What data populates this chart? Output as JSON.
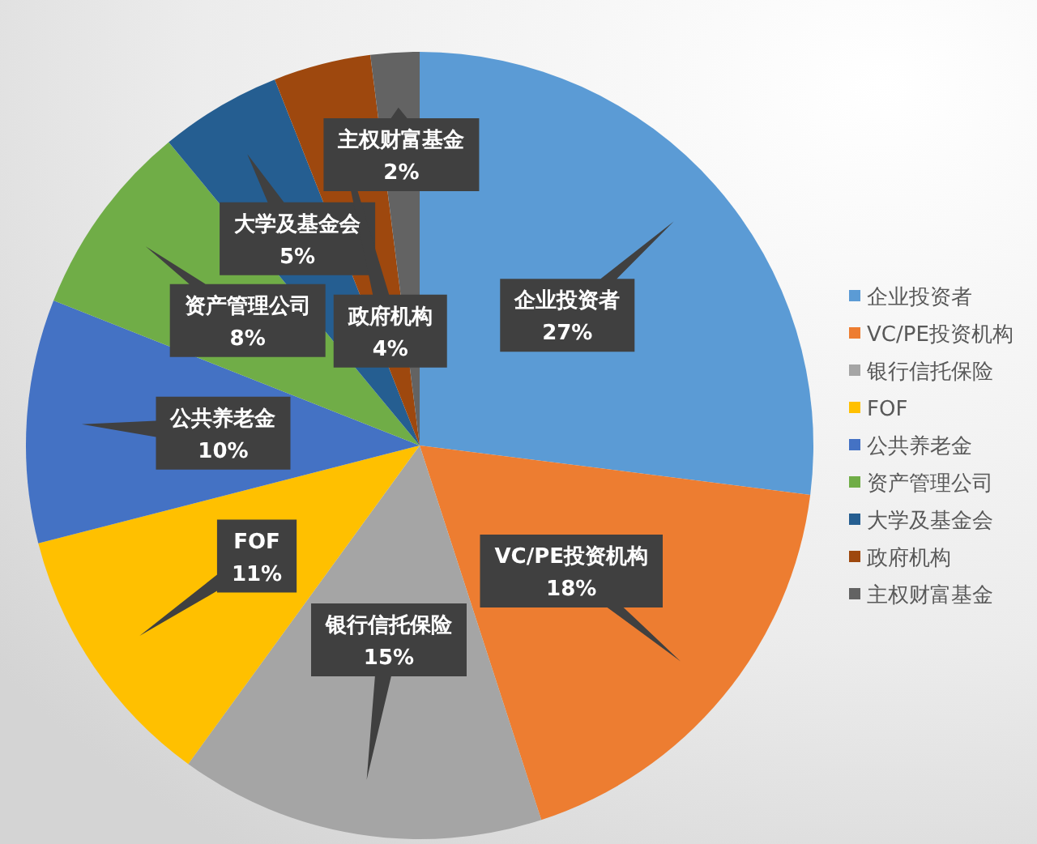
{
  "chart_data": {
    "type": "pie",
    "categories": [
      "企业投资者",
      "VC/PE投资机构",
      "银行信托保险",
      "FOF",
      "公共养老金",
      "资产管理公司",
      "大学及基金会",
      "政府机构",
      "主权财富基金"
    ],
    "values": [
      27,
      18,
      15,
      11,
      10,
      8,
      5,
      4,
      2
    ],
    "colors": [
      "#5b9bd5",
      "#ed7d31",
      "#a5a5a5",
      "#ffc000",
      "#4472c4",
      "#70ad47",
      "#255e91",
      "#9e480e",
      "#636363"
    ],
    "value_labels": [
      "27%",
      "18%",
      "15%",
      "11%",
      "10%",
      "8%",
      "5%",
      "4%",
      "2%"
    ],
    "legend": "right"
  }
}
